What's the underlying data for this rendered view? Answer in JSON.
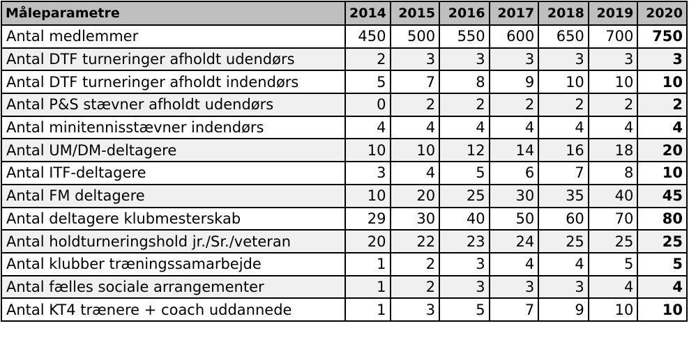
{
  "table": {
    "header": {
      "param": "Måleparametre",
      "years": [
        "2014",
        "2015",
        "2016",
        "2017",
        "2018",
        "2019",
        "2020"
      ]
    },
    "rows": [
      {
        "label": "Antal medlemmer",
        "values": [
          "450",
          "500",
          "550",
          "600",
          "650",
          "700",
          "750"
        ]
      },
      {
        "label": "Antal DTF turneringer afholdt udendørs",
        "values": [
          "2",
          "3",
          "3",
          "3",
          "3",
          "3",
          "3"
        ]
      },
      {
        "label": "Antal DTF turneringer afholdt indendørs",
        "values": [
          "5",
          "7",
          "8",
          "9",
          "10",
          "10",
          "10"
        ]
      },
      {
        "label": "Antal P&S stævner afholdt udendørs",
        "values": [
          "0",
          "2",
          "2",
          "2",
          "2",
          "2",
          "2"
        ]
      },
      {
        "label": "Antal minitennisstævner indendørs",
        "values": [
          "4",
          "4",
          "4",
          "4",
          "4",
          "4",
          "4"
        ]
      },
      {
        "label": "Antal UM/DM-deltagere",
        "values": [
          "10",
          "10",
          "12",
          "14",
          "16",
          "18",
          "20"
        ]
      },
      {
        "label": "Antal ITF-deltagere",
        "values": [
          "3",
          "4",
          "5",
          "6",
          "7",
          "8",
          "10"
        ]
      },
      {
        "label": "Antal FM deltagere",
        "values": [
          "10",
          "20",
          "25",
          "30",
          "35",
          "40",
          "45"
        ]
      },
      {
        "label": "Antal deltagere klubmesterskab",
        "values": [
          "29",
          "30",
          "40",
          "50",
          "60",
          "70",
          "80"
        ]
      },
      {
        "label": "Antal holdturneringshold jr./Sr./veteran",
        "values": [
          "20",
          "22",
          "23",
          "24",
          "25",
          "25",
          "25"
        ]
      },
      {
        "label": "Antal klubber træningssamarbejde",
        "values": [
          "1",
          "2",
          "3",
          "4",
          "4",
          "5",
          "5"
        ]
      },
      {
        "label": "Antal fælles sociale arrangementer",
        "values": [
          "1",
          "2",
          "3",
          "3",
          "3",
          "4",
          "4"
        ]
      },
      {
        "label": "Antal KT4 trænere + coach uddannede",
        "values": [
          "1",
          "3",
          "5",
          "7",
          "9",
          "10",
          "10"
        ]
      }
    ]
  }
}
